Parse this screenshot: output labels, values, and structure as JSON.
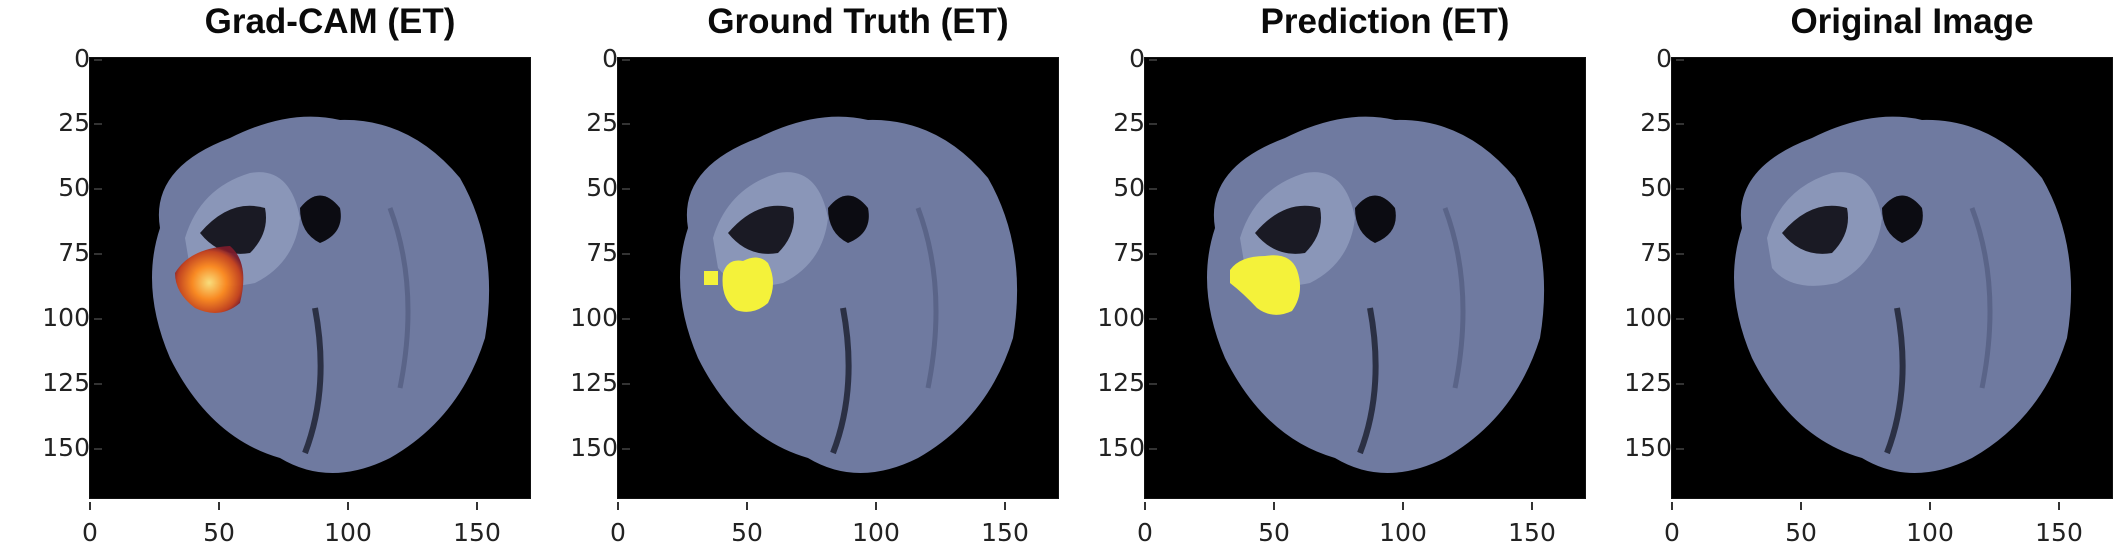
{
  "panels": [
    {
      "title": "Grad-CAM (ET)",
      "overlay": "gradcam"
    },
    {
      "title": "Ground Truth (ET)",
      "overlay": "mask"
    },
    {
      "title": "Prediction (ET)",
      "overlay": "mask"
    },
    {
      "title": "Original Image",
      "overlay": "none"
    }
  ],
  "axes": {
    "xticks": [
      "0",
      "50",
      "100",
      "150"
    ],
    "yticks": [
      "0",
      "25",
      "50",
      "75",
      "100",
      "125",
      "150"
    ],
    "xlim": [
      0,
      170
    ],
    "ylim": [
      170,
      0
    ]
  },
  "colors": {
    "background": "#000000",
    "brain_tissue": "#6f7aa0",
    "ventricle": "#1a1a24",
    "mask": "#f4f23a",
    "gradcam_hot": "#ff7a1a"
  }
}
